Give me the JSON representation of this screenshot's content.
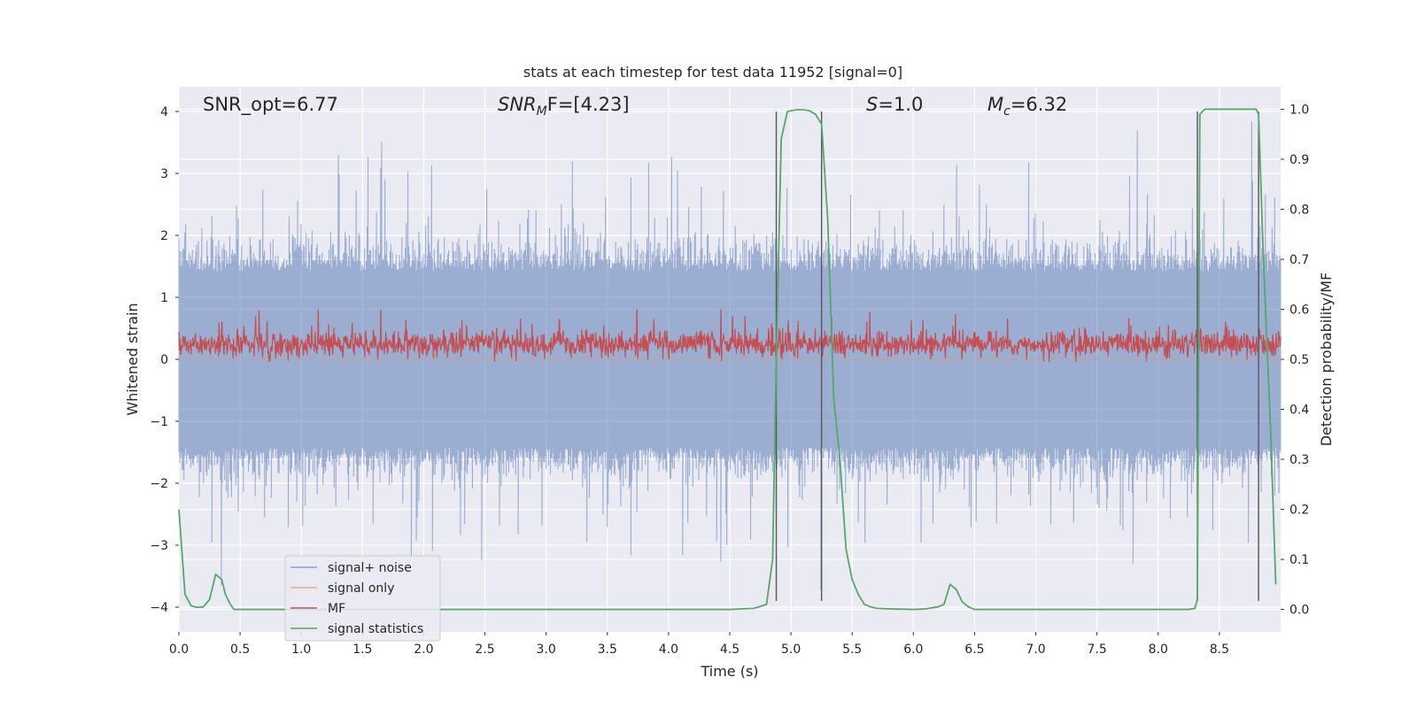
{
  "chart_data": {
    "type": "line",
    "title": "stats at each timestep for test data 11952 [signal=0]",
    "xlabel": "Time (s)",
    "ylabel": "Whitened strain",
    "y2label": "Detection probability/MF",
    "xlim": [
      0.0,
      9.0
    ],
    "ylim": [
      -4.4,
      4.4
    ],
    "y2lim": [
      -0.045,
      1.045
    ],
    "xticks": [
      "0.0",
      "0.5",
      "1.0",
      "1.5",
      "2.0",
      "2.5",
      "3.0",
      "3.5",
      "4.0",
      "4.5",
      "5.0",
      "5.5",
      "6.0",
      "6.5",
      "7.0",
      "7.5",
      "8.0",
      "8.5"
    ],
    "yticks": [
      "−4",
      "−3",
      "−2",
      "−1",
      "0",
      "1",
      "2",
      "3",
      "4"
    ],
    "y2ticks": [
      "0.0",
      "0.1",
      "0.2",
      "0.3",
      "0.4",
      "0.5",
      "0.6",
      "0.7",
      "0.8",
      "0.9",
      "1.0"
    ],
    "grid": true,
    "legend_position": "lower-left",
    "annotations": [
      {
        "text": "SNR_opt=6.77"
      },
      {
        "base": "SNR",
        "sub": "M",
        "rest": "F=[4.23]"
      },
      {
        "base": "S",
        "rest": "=1.0"
      },
      {
        "base": "M",
        "sub": "c",
        "rest": "=6.32"
      }
    ],
    "vertical_lines_x": [
      4.88,
      5.25,
      8.32,
      8.82
    ],
    "vertical_lines_ylim": [
      -3.9,
      4.0
    ],
    "series": [
      {
        "name": "signal+ noise",
        "axis": "left",
        "color": "#4c72b0",
        "style": "dense noise, approx ±1.5 band with spikes to ±4",
        "amplitude": 1.5,
        "peak": 4.0
      },
      {
        "name": "signal only",
        "axis": "left",
        "color": "#dd8452",
        "x": [
          0.0,
          9.0
        ],
        "y": [
          0.0,
          0.0
        ]
      },
      {
        "name": "MF",
        "axis": "right",
        "color": "#c44e52",
        "style": "dense noise around 0.53",
        "mean": 0.53,
        "range": [
          0.495,
          0.6
        ]
      },
      {
        "name": "signal statistics",
        "axis": "right",
        "color": "#55a868",
        "x": [
          0.0,
          0.05,
          0.1,
          0.15,
          0.2,
          0.25,
          0.3,
          0.35,
          0.38,
          0.42,
          0.45,
          0.5,
          0.55,
          1.0,
          2.0,
          3.0,
          4.0,
          4.5,
          4.7,
          4.8,
          4.85,
          4.88,
          4.92,
          4.97,
          5.0,
          5.05,
          5.1,
          5.15,
          5.2,
          5.25,
          5.3,
          5.35,
          5.4,
          5.45,
          5.5,
          5.55,
          5.6,
          5.65,
          5.7,
          5.8,
          6.0,
          6.1,
          6.2,
          6.25,
          6.3,
          6.35,
          6.4,
          6.45,
          6.5,
          7.0,
          7.5,
          8.0,
          8.25,
          8.3,
          8.32,
          8.34,
          8.38,
          8.45,
          8.55,
          8.7,
          8.8,
          8.82,
          8.86,
          8.92,
          8.96
        ],
        "y": [
          0.2,
          0.03,
          0.007,
          0.004,
          0.005,
          0.02,
          0.07,
          0.06,
          0.03,
          0.01,
          0.0,
          0.0,
          0.0,
          0.0,
          0.0,
          0.0,
          0.0,
          0.0,
          0.002,
          0.01,
          0.1,
          0.5,
          0.94,
          0.995,
          0.997,
          0.999,
          0.999,
          0.997,
          0.99,
          0.97,
          0.78,
          0.42,
          0.3,
          0.12,
          0.06,
          0.03,
          0.01,
          0.005,
          0.002,
          0.001,
          0.0,
          0.001,
          0.005,
          0.01,
          0.05,
          0.04,
          0.015,
          0.005,
          0.0,
          0.0,
          0.0,
          0.0,
          0.0,
          0.002,
          0.02,
          0.99,
          1.0,
          1.0,
          1.0,
          1.0,
          1.0,
          0.99,
          0.7,
          0.35,
          0.05
        ]
      }
    ]
  }
}
